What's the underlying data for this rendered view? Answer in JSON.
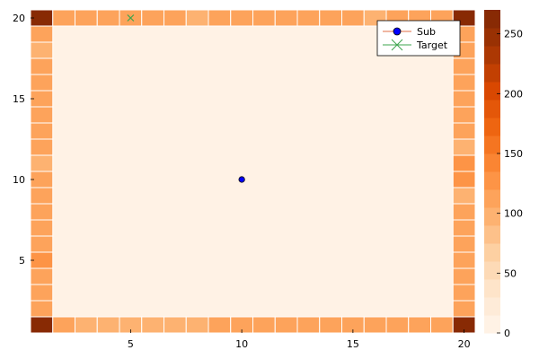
{
  "chart_data": {
    "type": "heatmap",
    "title": "",
    "xlabel": "",
    "ylabel": "",
    "xlim": [
      1,
      20
    ],
    "ylim": [
      1,
      20
    ],
    "x_ticks": [
      5,
      10,
      15,
      20
    ],
    "y_ticks": [
      5,
      10,
      15,
      20
    ],
    "grid": false,
    "legend_position": "top-right",
    "heatmap": {
      "grid_size": 20,
      "interior_value": 0,
      "corners": [
        {
          "x": 1,
          "y": 20,
          "value": 270
        },
        {
          "x": 20,
          "y": 20,
          "value": 270
        },
        {
          "x": 1,
          "y": 1,
          "value": 270
        },
        {
          "x": 20,
          "y": 1,
          "value": 270
        }
      ],
      "top_edge": [
        110,
        110,
        110,
        110,
        110,
        110,
        90,
        110,
        110,
        110,
        110,
        110,
        110,
        110,
        90,
        110,
        110,
        110
      ],
      "bottom_edge": [
        110,
        100,
        100,
        100,
        100,
        100,
        100,
        110,
        110,
        110,
        110,
        110,
        110,
        110,
        110,
        110,
        110,
        110
      ],
      "left_edge": [
        110,
        110,
        110,
        130,
        110,
        110,
        110,
        110,
        110,
        90,
        110,
        110,
        110,
        110,
        110,
        110,
        90,
        110
      ],
      "right_edge": [
        110,
        110,
        110,
        110,
        110,
        110,
        110,
        90,
        130,
        130,
        90,
        110,
        110,
        110,
        110,
        110,
        110,
        110
      ]
    },
    "series": [
      {
        "name": "Sub",
        "type": "scatter",
        "marker": "circle",
        "color": "#0000ff",
        "points": [
          [
            10,
            10
          ]
        ]
      },
      {
        "name": "Target",
        "type": "scatter",
        "marker": "x",
        "color": "#3da44d",
        "points": [
          [
            5,
            20
          ]
        ]
      }
    ],
    "colorbar": {
      "min": 0,
      "max": 270,
      "ticks": [
        0,
        50,
        100,
        150,
        200,
        250
      ],
      "levels": 18
    }
  }
}
